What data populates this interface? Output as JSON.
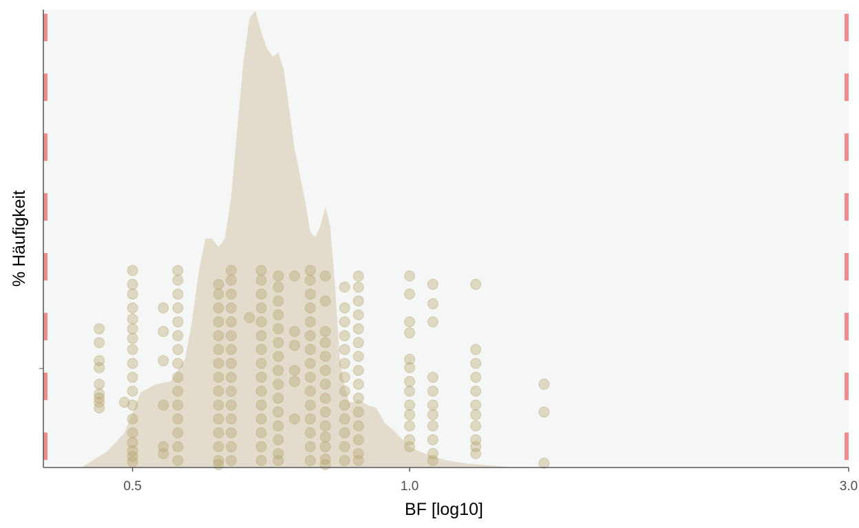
{
  "chart_data": {
    "type": "area",
    "title": "",
    "xlabel": "BF [log10]",
    "ylabel": "% Häufigkeit",
    "x_scale": "log10",
    "xlim": [
      0.4,
      3.0
    ],
    "x_ticks": [
      {
        "value": 0.5,
        "label": "0.5"
      },
      {
        "value": 1.0,
        "label": "1.0"
      },
      {
        "value": 3.0,
        "label": "3.0"
      }
    ],
    "reference_lines": [
      0.4,
      3.0
    ],
    "grid": false,
    "colors": {
      "panel": "#f5f7f7",
      "density": "#e3dccd",
      "points": "#b9a46c",
      "reference": "#f08c8c",
      "axis": "#555555"
    },
    "density": {
      "x": [
        0.44,
        0.47,
        0.49,
        0.51,
        0.53,
        0.55,
        0.57,
        0.58,
        0.59,
        0.6,
        0.61,
        0.62,
        0.63,
        0.64,
        0.65,
        0.66,
        0.67,
        0.68,
        0.69,
        0.7,
        0.71,
        0.72,
        0.73,
        0.75,
        0.77,
        0.78,
        0.79,
        0.8,
        0.81,
        0.82,
        0.83,
        0.84,
        0.85,
        0.86,
        0.87,
        0.88,
        0.9,
        0.92,
        0.94,
        0.96,
        0.98,
        1.0,
        1.03,
        1.06,
        1.1,
        1.15,
        1.2,
        1.25,
        1.3,
        1.4,
        1.5,
        1.6
      ],
      "y": [
        0.0,
        0.12,
        0.25,
        0.54,
        0.6,
        0.62,
        0.78,
        1.05,
        1.41,
        1.65,
        1.65,
        1.59,
        1.65,
        1.95,
        2.45,
        2.93,
        3.24,
        3.29,
        3.14,
        3.02,
        2.96,
        2.99,
        2.87,
        2.3,
        1.92,
        1.7,
        1.66,
        1.74,
        1.88,
        1.74,
        1.3,
        0.78,
        0.58,
        0.47,
        0.47,
        0.49,
        0.45,
        0.43,
        0.32,
        0.27,
        0.21,
        0.15,
        0.11,
        0.08,
        0.05,
        0.03,
        0.02,
        0.01,
        0.0,
        0.0,
        0.0,
        0.0
      ]
    },
    "points": {
      "columns": [
        {
          "x": 0.46,
          "values": [
            1.0,
            0.9,
            0.77,
            0.72,
            0.6,
            0.53,
            0.5,
            0.47,
            0.43
          ]
        },
        {
          "x": 0.49,
          "values": [
            0.47
          ]
        },
        {
          "x": 0.5,
          "values": [
            1.42,
            1.32,
            1.25,
            1.15,
            1.07,
            1.0,
            0.93,
            0.85,
            0.75,
            0.65,
            0.55,
            0.45,
            0.35,
            0.25,
            0.18,
            0.12,
            0.08,
            0.04
          ]
        },
        {
          "x": 0.54,
          "values": [
            1.15,
            0.98,
            0.77,
            0.45,
            0.15,
            0.1
          ]
        },
        {
          "x": 0.56,
          "values": [
            1.42,
            1.35,
            1.25,
            1.15,
            1.05,
            0.95,
            0.85,
            0.75,
            0.65,
            0.55,
            0.45,
            0.35,
            0.25,
            0.15,
            0.05
          ]
        },
        {
          "x": 0.62,
          "values": [
            1.32,
            1.25,
            1.15,
            1.05,
            0.95,
            0.85,
            0.75,
            0.65,
            0.55,
            0.45,
            0.35,
            0.25,
            0.15,
            0.05,
            0.02
          ]
        },
        {
          "x": 0.64,
          "values": [
            1.42,
            1.35,
            1.25,
            1.15,
            1.05,
            0.95,
            0.85,
            0.75,
            0.65,
            0.55,
            0.45,
            0.35,
            0.25,
            0.15,
            0.05
          ]
        },
        {
          "x": 0.67,
          "values": [
            1.08
          ]
        },
        {
          "x": 0.69,
          "values": [
            1.42,
            1.35,
            1.25,
            1.15,
            1.05,
            0.95,
            0.85,
            0.75,
            0.65,
            0.55,
            0.45,
            0.35,
            0.25,
            0.15,
            0.05
          ]
        },
        {
          "x": 0.72,
          "values": [
            1.38,
            1.3,
            1.2,
            1.1,
            1.0,
            0.9,
            0.8,
            0.7,
            0.6,
            0.5,
            0.4,
            0.3,
            0.2,
            0.1,
            0.05
          ]
        },
        {
          "x": 0.75,
          "values": [
            1.38,
            0.98,
            0.88,
            0.7,
            0.62,
            0.35
          ]
        },
        {
          "x": 0.78,
          "values": [
            1.42,
            1.35,
            1.25,
            1.15,
            1.05,
            0.95,
            0.85,
            0.75,
            0.65,
            0.55,
            0.45,
            0.35,
            0.25,
            0.15,
            0.05
          ]
        },
        {
          "x": 0.81,
          "values": [
            1.38,
            1.2,
            0.98,
            0.9,
            0.8,
            0.7,
            0.6,
            0.5,
            0.4,
            0.3,
            0.22,
            0.15,
            0.06,
            0.02
          ]
        },
        {
          "x": 0.85,
          "values": [
            1.3,
            1.15,
            1.05,
            0.95,
            0.85,
            0.75,
            0.65,
            0.55,
            0.45,
            0.35,
            0.25,
            0.15,
            0.05
          ]
        },
        {
          "x": 0.88,
          "values": [
            1.38,
            1.3,
            1.2,
            1.1,
            1.0,
            0.9,
            0.8,
            0.7,
            0.6,
            0.5,
            0.4,
            0.3,
            0.2,
            0.1,
            0.05
          ]
        },
        {
          "x": 1.0,
          "values": [
            1.38,
            1.25,
            1.05,
            0.97,
            0.78,
            0.72,
            0.62,
            0.55,
            0.45,
            0.38,
            0.3,
            0.2,
            0.15
          ]
        },
        {
          "x": 1.06,
          "values": [
            1.32,
            1.18,
            1.05,
            0.65,
            0.55,
            0.45,
            0.38,
            0.3,
            0.2,
            0.1,
            0.05
          ]
        },
        {
          "x": 1.18,
          "values": [
            1.32,
            0.85,
            0.75,
            0.65,
            0.55,
            0.45,
            0.38,
            0.3,
            0.2,
            0.15,
            0.1
          ]
        },
        {
          "x": 1.4,
          "values": [
            0.6,
            0.4,
            0.03
          ]
        }
      ]
    }
  }
}
